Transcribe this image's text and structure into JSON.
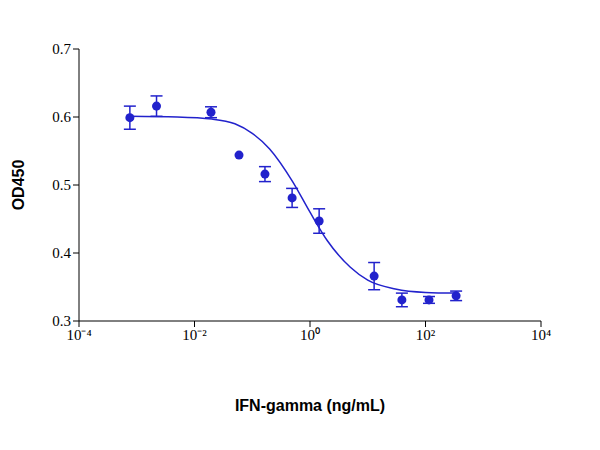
{
  "chart_data": {
    "type": "scatter",
    "x_label": "IFN-gamma (ng/mL)",
    "y_label": "OD450",
    "log": "x",
    "grid": false,
    "color": "#2222cc",
    "marker": "circle",
    "line_style": "solid",
    "x": [
      0.00076,
      0.0022,
      0.0193,
      0.059,
      0.166,
      0.49,
      1.44,
      12.9,
      39,
      115,
      339
    ],
    "values": [
      0.599,
      0.616,
      0.607,
      0.544,
      0.516,
      0.481,
      0.447,
      0.366,
      0.331,
      0.331,
      0.337
    ],
    "errors": [
      0.017,
      0.015,
      0.008,
      0,
      0.011,
      0.014,
      0.018,
      0.02,
      0.01,
      0.005,
      0.007
    ],
    "fit": {
      "x": [
        0.00076,
        0.005,
        0.02,
        0.05,
        0.1,
        0.2,
        0.5,
        1,
        2,
        5,
        10,
        30,
        100,
        339
      ],
      "values": [
        0.601,
        0.6,
        0.597,
        0.59,
        0.576,
        0.553,
        0.505,
        0.46,
        0.418,
        0.379,
        0.36,
        0.347,
        0.342,
        0.341
      ]
    },
    "xlim": [
      0.0001,
      10000
    ],
    "xticks": [
      {
        "value": 0.0001,
        "label": "10⁻⁴"
      },
      {
        "value": 0.01,
        "label": "10⁻²"
      },
      {
        "value": 1,
        "label": "10⁰"
      },
      {
        "value": 100,
        "label": "10²"
      },
      {
        "value": 10000,
        "label": "10⁴"
      }
    ],
    "ylim": [
      0.3,
      0.7
    ],
    "yticks": [
      0.3,
      0.4,
      0.5,
      0.6,
      0.7
    ]
  }
}
